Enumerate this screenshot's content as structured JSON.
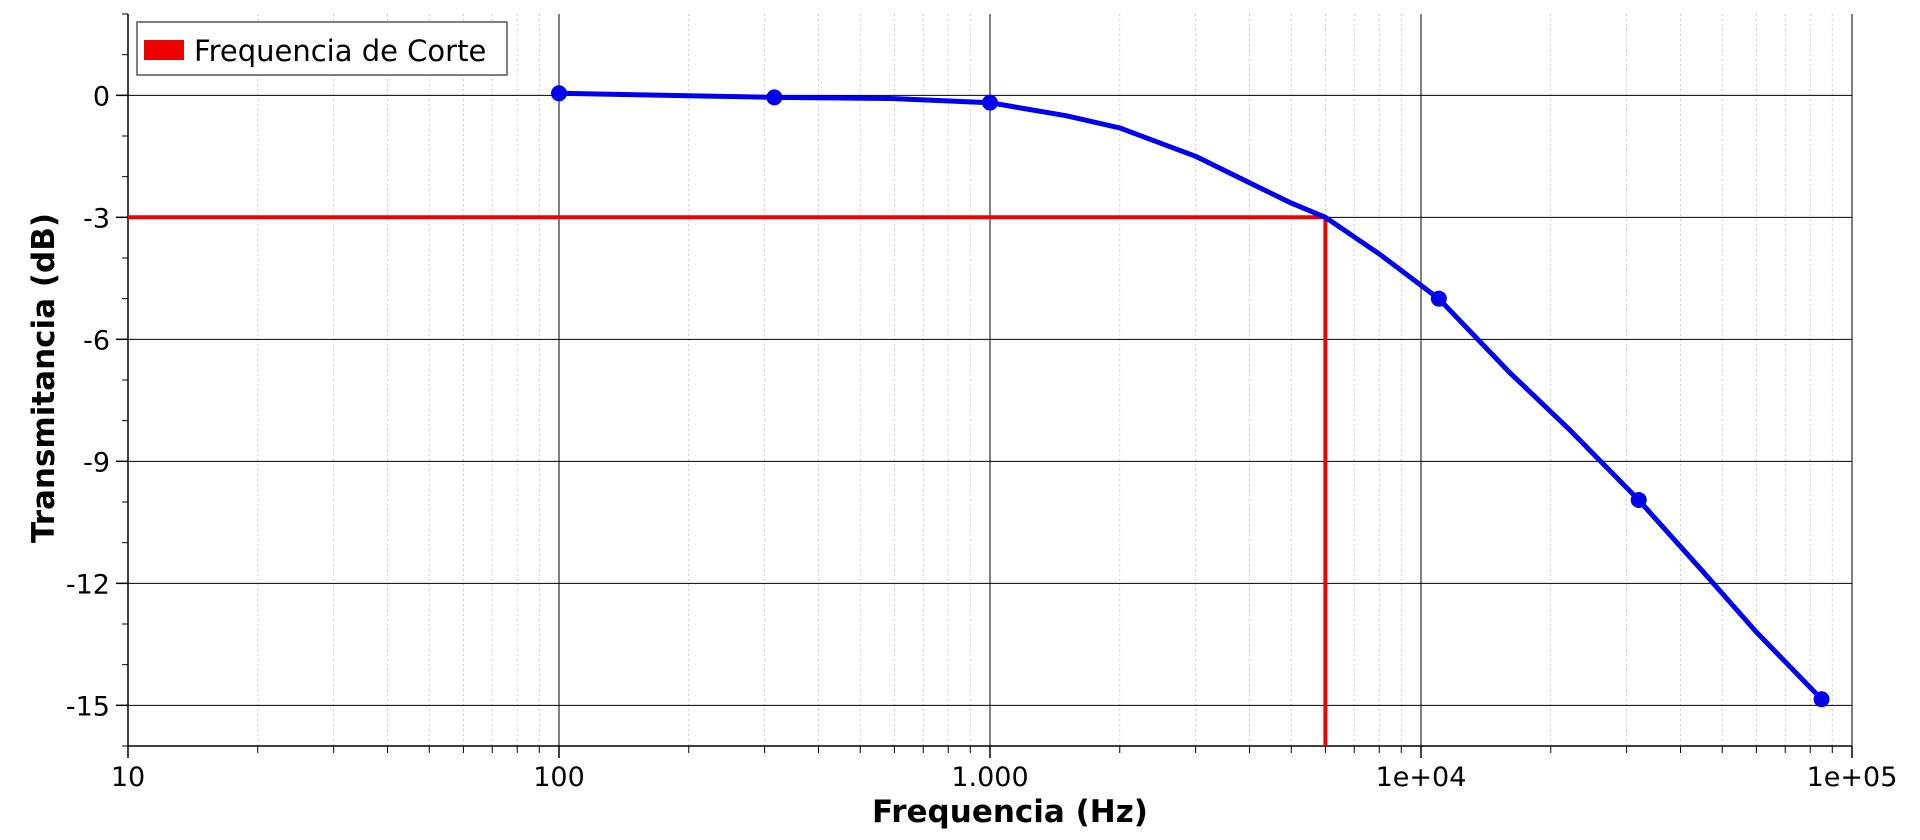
{
  "chart_data": {
    "type": "line",
    "xlabel": "Frequencia (Hz)",
    "ylabel": "Transmitancia (dB)",
    "x_scale": "log",
    "xlim": [
      10,
      100000
    ],
    "ylim": [
      -16,
      2
    ],
    "x_ticks": [
      {
        "value": 10,
        "label": "10"
      },
      {
        "value": 100,
        "label": "100"
      },
      {
        "value": 1000,
        "label": "1.000"
      },
      {
        "value": 10000,
        "label": "1e+04"
      },
      {
        "value": 100000,
        "label": "1e+05"
      }
    ],
    "y_ticks": [
      {
        "value": 0,
        "label": "0"
      },
      {
        "value": -3,
        "label": "-3"
      },
      {
        "value": -6,
        "label": "-6"
      },
      {
        "value": -9,
        "label": "-9"
      },
      {
        "value": -12,
        "label": "-12"
      },
      {
        "value": -15,
        "label": "-15"
      }
    ],
    "grid": true,
    "legend_position": "top-left",
    "series": [
      {
        "color": "#0000ee",
        "markers": true,
        "points": [
          {
            "x": 100,
            "y": 0.05
          },
          {
            "x": 316,
            "y": -0.05
          },
          {
            "x": 1000,
            "y": -0.18
          },
          {
            "x": 11000,
            "y": -5.0
          },
          {
            "x": 32000,
            "y": -9.95
          },
          {
            "x": 85000,
            "y": -14.85
          }
        ],
        "curve": [
          {
            "x": 100,
            "y": 0.05
          },
          {
            "x": 316,
            "y": -0.05
          },
          {
            "x": 600,
            "y": -0.08
          },
          {
            "x": 1000,
            "y": -0.18
          },
          {
            "x": 1500,
            "y": -0.5
          },
          {
            "x": 2000,
            "y": -0.8
          },
          {
            "x": 3000,
            "y": -1.5
          },
          {
            "x": 4000,
            "y": -2.15
          },
          {
            "x": 5000,
            "y": -2.65
          },
          {
            "x": 6000,
            "y": -3.0
          },
          {
            "x": 8000,
            "y": -3.9
          },
          {
            "x": 11000,
            "y": -5.0
          },
          {
            "x": 16000,
            "y": -6.8
          },
          {
            "x": 22000,
            "y": -8.2
          },
          {
            "x": 32000,
            "y": -9.95
          },
          {
            "x": 45000,
            "y": -11.7
          },
          {
            "x": 60000,
            "y": -13.2
          },
          {
            "x": 85000,
            "y": -14.85
          }
        ]
      },
      {
        "name": "Frequencia de Corte",
        "color": "#ee0000",
        "markers": false,
        "points": [
          {
            "x": 10,
            "y": -3
          },
          {
            "x": 6000,
            "y": -3
          },
          {
            "x": 6000,
            "y": -16
          }
        ]
      }
    ]
  }
}
